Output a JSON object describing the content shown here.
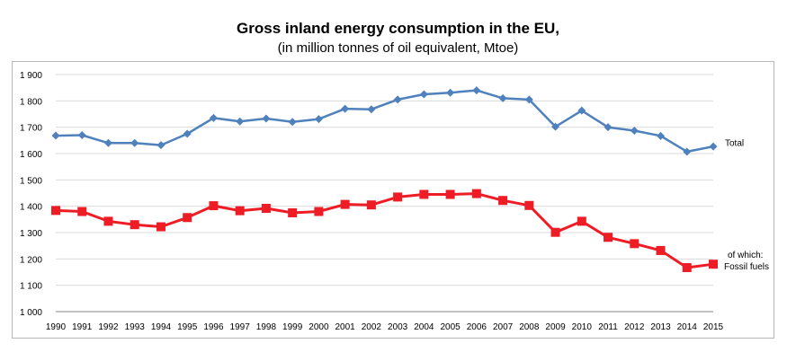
{
  "chart_data": {
    "type": "line",
    "title": "Gross inland energy consumption in the EU,",
    "subtitle": "(in million tonnes of oil equivalent, Mtoe)",
    "xlabel": "",
    "ylabel": "",
    "ylim": [
      1000,
      1900
    ],
    "yticks": [
      "1 000",
      "1 100",
      "1 200",
      "1 300",
      "1 400",
      "1 500",
      "1 600",
      "1 700",
      "1 800",
      "1 900"
    ],
    "grid": true,
    "categories": [
      "1990",
      "1991",
      "1992",
      "1993",
      "1994",
      "1995",
      "1996",
      "1997",
      "1998",
      "1999",
      "2000",
      "2001",
      "2002",
      "2003",
      "2004",
      "2005",
      "2006",
      "2007",
      "2008",
      "2009",
      "2010",
      "2011",
      "2012",
      "2013",
      "2014",
      "2015"
    ],
    "series": [
      {
        "name": "Total",
        "label_lines": [
          "Total"
        ],
        "color": "#4f81bd",
        "marker": "diamond",
        "values": [
          1668,
          1670,
          1640,
          1640,
          1632,
          1675,
          1735,
          1722,
          1733,
          1720,
          1731,
          1770,
          1768,
          1805,
          1825,
          1831,
          1840,
          1810,
          1805,
          1702,
          1763,
          1700,
          1687,
          1667,
          1607,
          1627
        ]
      },
      {
        "name": "of which: Fossil fuels",
        "label_lines": [
          "of which:",
          "Fossil fuels"
        ],
        "color": "#ee1c25",
        "marker": "square",
        "values": [
          1384,
          1380,
          1343,
          1330,
          1322,
          1357,
          1402,
          1383,
          1392,
          1375,
          1380,
          1407,
          1405,
          1435,
          1445,
          1445,
          1448,
          1422,
          1403,
          1301,
          1343,
          1282,
          1258,
          1232,
          1167,
          1180
        ]
      }
    ]
  }
}
